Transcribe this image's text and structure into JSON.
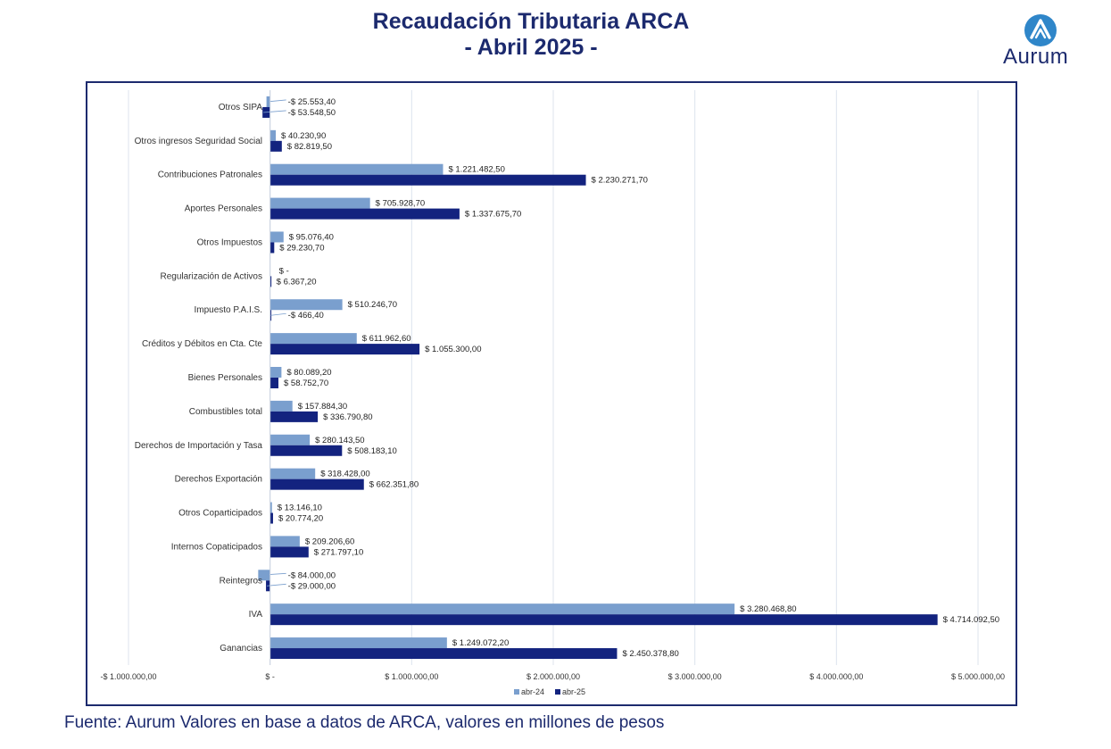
{
  "header": {
    "title_line1": "Recaudación Tributaria ARCA",
    "title_line2": "- Abril 2025 -",
    "logo_text": "Aurum"
  },
  "footer": {
    "source": "Fuente: Aurum Valores en base a datos de ARCA, valores en millones de pesos"
  },
  "colors": {
    "title": "#1c2a6e",
    "series_abr24": "#7a9fce",
    "series_abr25": "#13237f",
    "grid": "#dce3ee",
    "frame": "#1c2a6e"
  },
  "chart_data": {
    "type": "bar",
    "orientation": "horizontal",
    "title": "Recaudación Tributaria ARCA - Abril 2025 -",
    "xlim": [
      -1000000,
      5000000
    ],
    "x_ticks": [
      -1000000,
      0,
      1000000,
      2000000,
      3000000,
      4000000,
      5000000
    ],
    "x_tick_labels": [
      "-$ 1.000.000,00",
      "$ -",
      "$ 1.000.000,00",
      "$ 2.000.000,00",
      "$ 3.000.000,00",
      "$ 4.000.000,00",
      "$ 5.000.000,00"
    ],
    "grid": true,
    "legend_position": "bottom",
    "categories": [
      "Otros SIPA",
      "Otros ingresos Seguridad Social",
      "Contribuciones Patronales",
      "Aportes Personales",
      "Otros Impuestos",
      "Regularización de Activos",
      "Impuesto P.A.I.S.",
      "Créditos y Débitos en Cta. Cte",
      "Bienes Personales",
      "Combustibles total",
      "Derechos de Importación y Tasa",
      "Derechos Exportación",
      "Otros Coparticipados",
      "Internos Copaticipados",
      "Reintegros",
      "IVA",
      "Ganancias"
    ],
    "series": [
      {
        "name": "abr-24",
        "values": [
          -25553.4,
          40230.9,
          1221482.5,
          705928.7,
          95076.4,
          0,
          510246.7,
          611962.6,
          80089.2,
          157884.3,
          280143.5,
          318428.0,
          13146.1,
          209206.6,
          -84000.0,
          3280468.8,
          1249072.2
        ],
        "labels": [
          "-$ 25.553,40",
          "$ 40.230,90",
          "$ 1.221.482,50",
          "$ 705.928,70",
          "$ 95.076,40",
          "$ -",
          "$ 510.246,70",
          "$ 611.962,60",
          "$ 80.089,20",
          "$ 157.884,30",
          "$ 280.143,50",
          "$ 318.428,00",
          "$ 13.146,10",
          "$ 209.206,60",
          "-$ 84.000,00",
          "$ 3.280.468,80",
          "$ 1.249.072,20"
        ]
      },
      {
        "name": "abr-25",
        "values": [
          -53548.5,
          82819.5,
          2230271.7,
          1337675.7,
          29230.7,
          6367.2,
          -466.4,
          1055300.0,
          58752.7,
          336790.8,
          508183.1,
          662351.8,
          20774.2,
          271797.1,
          -29000.0,
          4714092.5,
          2450378.8
        ],
        "labels": [
          "-$ 53.548,50",
          "$ 82.819,50",
          "$ 2.230.271,70",
          "$ 1.337.675,70",
          "$ 29.230,70",
          "$ 6.367,20",
          "-$ 466,40",
          "$ 1.055.300,00",
          "$ 58.752,70",
          "$ 336.790,80",
          "$ 508.183,10",
          "$ 662.351,80",
          "$ 20.774,20",
          "$ 271.797,10",
          "-$ 29.000,00",
          "$ 4.714.092,50",
          "$ 2.450.378,80"
        ]
      }
    ]
  }
}
